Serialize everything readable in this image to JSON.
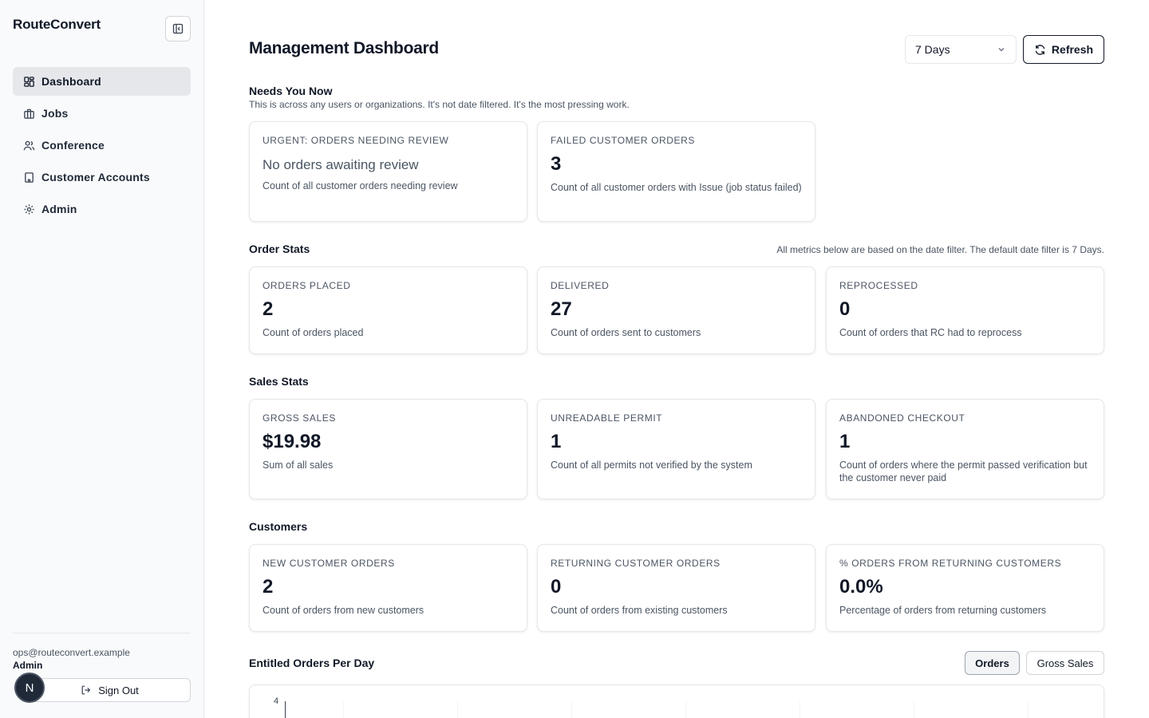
{
  "sidebar": {
    "brand": "RouteConvert",
    "items": [
      {
        "label": "Dashboard",
        "icon": "dashboard-icon",
        "active": true
      },
      {
        "label": "Jobs",
        "icon": "briefcase-icon"
      },
      {
        "label": "Conference",
        "icon": "users-icon"
      },
      {
        "label": "Customer Accounts",
        "icon": "building-icon"
      },
      {
        "label": "Admin",
        "icon": "gear-icon"
      }
    ],
    "user": {
      "email": "ops@routeconvert.example",
      "role": "Admin",
      "initial": "N"
    },
    "signout_label": "Sign Out"
  },
  "header": {
    "title": "Management Dashboard",
    "range": "7 Days",
    "refresh_label": "Refresh"
  },
  "needs": {
    "title": "Needs You Now",
    "subtitle": "This is across any users or organizations. It's not date filtered. It's the most pressing work.",
    "cards": [
      {
        "label": "URGENT: ORDERS NEEDING REVIEW",
        "value": "No orders awaiting review",
        "desc": "Count of all customer orders needing review"
      },
      {
        "label": "FAILED CUSTOMER ORDERS",
        "value": "3",
        "desc": "Count of all customer orders with Issue (job status failed)"
      }
    ]
  },
  "orders": {
    "title": "Order Stats",
    "note": "All metrics below are based on the date filter. The default date filter is 7 Days.",
    "cards": [
      {
        "label": "ORDERS PLACED",
        "value": "2",
        "desc": "Count of orders placed"
      },
      {
        "label": "DELIVERED",
        "value": "27",
        "desc": "Count of orders sent to customers"
      },
      {
        "label": "REPROCESSED",
        "value": "0",
        "desc": "Count of orders that RC had to reprocess"
      }
    ]
  },
  "sales": {
    "title": "Sales Stats",
    "cards": [
      {
        "label": "GROSS SALES",
        "value": "$19.98",
        "desc": "Sum of all sales"
      },
      {
        "label": "UNREADABLE PERMIT",
        "value": "1",
        "desc": "Count of all permits not verified by the system"
      },
      {
        "label": "ABANDONED CHECKOUT",
        "value": "1",
        "desc": "Count of orders where the permit passed verification but the customer never paid"
      }
    ]
  },
  "customers": {
    "title": "Customers",
    "cards": [
      {
        "label": "NEW CUSTOMER ORDERS",
        "value": "2",
        "desc": "Count of orders from new customers"
      },
      {
        "label": "RETURNING CUSTOMER ORDERS",
        "value": "0",
        "desc": "Count of orders from existing customers"
      },
      {
        "label": "% ORDERS FROM RETURNING CUSTOMERS",
        "value": "0.0%",
        "desc": "Percentage of orders from returning customers"
      }
    ]
  },
  "chart": {
    "title": "Entitled Orders Per Day",
    "toggles": [
      "Orders",
      "Gross Sales"
    ],
    "active_toggle": "Orders",
    "y_tick_top": "4"
  },
  "chart_data": {
    "type": "line",
    "title": "Entitled Orders Per Day",
    "yticks": [
      4
    ]
  }
}
